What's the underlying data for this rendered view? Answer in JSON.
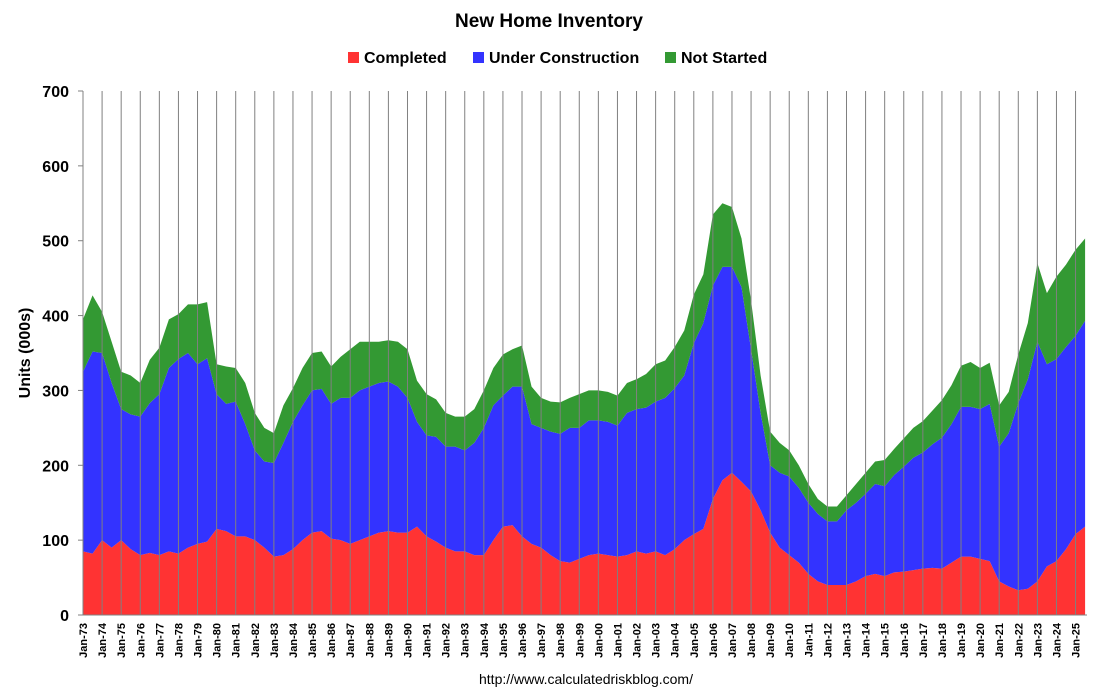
{
  "chart_data": {
    "type": "area",
    "stacked": true,
    "title": "New Home Inventory",
    "ylabel": "Units (000s)",
    "xlabel": "",
    "ylim": [
      0,
      700
    ],
    "yticks": [
      0,
      100,
      200,
      300,
      400,
      500,
      600,
      700
    ],
    "xlim": [
      1973.0,
      2025.6
    ],
    "x_tick_labels": [
      "Jan-73",
      "Jan-74",
      "Jan-75",
      "Jan-76",
      "Jan-77",
      "Jan-78",
      "Jan-79",
      "Jan-80",
      "Jan-81",
      "Jan-82",
      "Jan-83",
      "Jan-84",
      "Jan-85",
      "Jan-86",
      "Jan-87",
      "Jan-88",
      "Jan-89",
      "Jan-90",
      "Jan-91",
      "Jan-92",
      "Jan-93",
      "Jan-94",
      "Jan-95",
      "Jan-96",
      "Jan-97",
      "Jan-98",
      "Jan-99",
      "Jan-00",
      "Jan-01",
      "Jan-02",
      "Jan-03",
      "Jan-04",
      "Jan-05",
      "Jan-06",
      "Jan-07",
      "Jan-08",
      "Jan-09",
      "Jan-10",
      "Jan-11",
      "Jan-12",
      "Jan-13",
      "Jan-14",
      "Jan-15",
      "Jan-16",
      "Jan-17",
      "Jan-18",
      "Jan-19",
      "Jan-20",
      "Jan-21",
      "Jan-22",
      "Jan-23",
      "Jan-24",
      "Jan-25"
    ],
    "grid": "vertical",
    "legend_position": "top",
    "x": [
      1973.0,
      1973.5,
      1974.0,
      1974.5,
      1975.0,
      1975.5,
      1976.0,
      1976.5,
      1977.0,
      1977.5,
      1978.0,
      1978.5,
      1979.0,
      1979.5,
      1980.0,
      1980.5,
      1981.0,
      1981.5,
      1982.0,
      1982.5,
      1983.0,
      1983.5,
      1984.0,
      1984.5,
      1985.0,
      1985.5,
      1986.0,
      1986.5,
      1987.0,
      1987.5,
      1988.0,
      1988.5,
      1989.0,
      1989.5,
      1990.0,
      1990.5,
      1991.0,
      1991.5,
      1992.0,
      1992.5,
      1993.0,
      1993.5,
      1994.0,
      1994.5,
      1995.0,
      1995.5,
      1996.0,
      1996.5,
      1997.0,
      1997.5,
      1998.0,
      1998.5,
      1999.0,
      1999.5,
      2000.0,
      2000.5,
      2001.0,
      2001.5,
      2002.0,
      2002.5,
      2003.0,
      2003.5,
      2004.0,
      2004.5,
      2005.0,
      2005.5,
      2006.0,
      2006.5,
      2007.0,
      2007.5,
      2008.0,
      2008.5,
      2009.0,
      2009.5,
      2010.0,
      2010.5,
      2011.0,
      2011.5,
      2012.0,
      2012.5,
      2013.0,
      2013.5,
      2014.0,
      2014.5,
      2015.0,
      2015.5,
      2016.0,
      2016.5,
      2017.0,
      2017.5,
      2018.0,
      2018.5,
      2019.0,
      2019.5,
      2020.0,
      2020.5,
      2021.0,
      2021.5,
      2022.0,
      2022.5,
      2023.0,
      2023.5,
      2024.0,
      2024.5,
      2025.0,
      2025.5
    ],
    "series": [
      {
        "name": "Completed",
        "color": "#ff3333",
        "values": [
          85,
          82,
          100,
          90,
          100,
          88,
          80,
          83,
          80,
          85,
          82,
          90,
          95,
          98,
          115,
          112,
          105,
          105,
          100,
          90,
          78,
          80,
          88,
          100,
          110,
          112,
          102,
          100,
          95,
          100,
          105,
          110,
          112,
          110,
          110,
          118,
          105,
          98,
          90,
          85,
          85,
          80,
          80,
          100,
          118,
          120,
          105,
          95,
          90,
          80,
          72,
          70,
          75,
          80,
          82,
          80,
          78,
          80,
          85,
          82,
          85,
          80,
          88,
          100,
          108,
          115,
          155,
          180,
          190,
          178,
          165,
          140,
          110,
          90,
          80,
          70,
          55,
          45,
          40,
          40,
          40,
          45,
          52,
          55,
          52,
          57,
          58,
          60,
          62,
          63,
          62,
          70,
          78,
          78,
          75,
          72,
          45,
          38,
          33,
          35,
          45,
          65,
          72,
          88,
          108,
          118
        ]
      },
      {
        "name": "Under Construction",
        "color": "#3333ff",
        "values": [
          240,
          270,
          250,
          220,
          175,
          180,
          185,
          200,
          215,
          245,
          260,
          260,
          240,
          245,
          180,
          170,
          180,
          150,
          120,
          115,
          125,
          150,
          170,
          180,
          190,
          190,
          180,
          190,
          195,
          200,
          200,
          200,
          200,
          195,
          180,
          140,
          135,
          140,
          135,
          140,
          135,
          150,
          170,
          180,
          175,
          185,
          200,
          160,
          160,
          165,
          170,
          180,
          175,
          180,
          178,
          178,
          175,
          190,
          190,
          195,
          200,
          210,
          215,
          220,
          255,
          275,
          285,
          285,
          275,
          260,
          190,
          130,
          90,
          100,
          105,
          100,
          95,
          90,
          85,
          85,
          100,
          105,
          110,
          120,
          120,
          130,
          140,
          150,
          155,
          165,
          175,
          185,
          200,
          200,
          200,
          210,
          180,
          205,
          250,
          280,
          320,
          270,
          270,
          270,
          265,
          275
        ]
      },
      {
        "name": "Not Started",
        "color": "#339933",
        "values": [
          70,
          75,
          55,
          55,
          50,
          52,
          45,
          58,
          62,
          65,
          60,
          65,
          80,
          75,
          40,
          50,
          45,
          55,
          50,
          45,
          40,
          50,
          45,
          50,
          50,
          50,
          50,
          55,
          65,
          65,
          60,
          55,
          55,
          60,
          65,
          55,
          55,
          50,
          45,
          40,
          45,
          45,
          50,
          50,
          55,
          50,
          55,
          50,
          40,
          40,
          42,
          40,
          45,
          40,
          40,
          40,
          40,
          40,
          40,
          45,
          50,
          50,
          55,
          60,
          65,
          65,
          95,
          85,
          80,
          65,
          65,
          50,
          45,
          40,
          35,
          30,
          25,
          20,
          20,
          20,
          20,
          25,
          28,
          30,
          35,
          35,
          38,
          40,
          42,
          45,
          50,
          52,
          55,
          60,
          55,
          55,
          55,
          55,
          65,
          75,
          105,
          95,
          110,
          110,
          115,
          110
        ]
      }
    ],
    "footer": "http://www.calculatedriskblog.com/"
  }
}
